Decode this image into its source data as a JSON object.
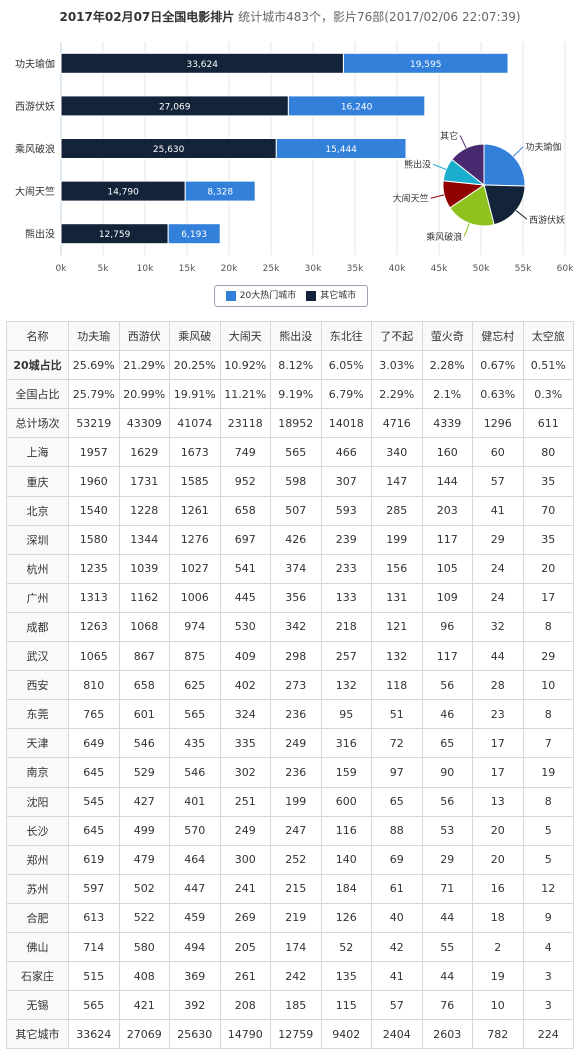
{
  "header": {
    "title": "2017年02月07日全国电影排片",
    "stats": "统计城市483个，影片76部(2017/02/06 22:07:39)"
  },
  "chart_data": [
    {
      "type": "bar",
      "orientation": "horizontal",
      "stacked": true,
      "categories": [
        "功夫瑜伽",
        "西游伏妖",
        "乘风破浪",
        "大闹天竺",
        "熊出没"
      ],
      "series": [
        {
          "name": "其它城市",
          "color": "#13243a",
          "values": [
            33624,
            27069,
            25630,
            14790,
            12759
          ]
        },
        {
          "name": "20大热门城市",
          "color": "#3380db",
          "values": [
            19595,
            16240,
            15444,
            8328,
            6193
          ]
        }
      ],
      "xlim": [
        0,
        60000
      ],
      "xticks": [
        "0k",
        "5k",
        "10k",
        "15k",
        "20k",
        "25k",
        "30k",
        "35k",
        "40k",
        "45k",
        "50k",
        "55k",
        "60k"
      ],
      "grid": true,
      "legend": "bottom-center"
    },
    {
      "type": "pie",
      "labels": [
        "功夫瑜伽",
        "西游伏妖",
        "乘风破浪",
        "大闹天竺",
        "熊出没",
        "其它"
      ],
      "values": [
        53219,
        43309,
        41074,
        23118,
        18952,
        30000
      ],
      "colors": [
        "#3380db",
        "#13243a",
        "#8dc21f",
        "#910000",
        "#1aadce",
        "#492970"
      ]
    }
  ],
  "table": {
    "headers": [
      "名称",
      "功夫瑜",
      "西游伏",
      "乘风破",
      "大闹天",
      "熊出没",
      "东北往",
      "了不起",
      "萤火奇",
      "健忘村",
      "太空旅"
    ],
    "rows": [
      [
        "20城占比",
        "25.69%",
        "21.29%",
        "20.25%",
        "10.92%",
        "8.12%",
        "6.05%",
        "3.03%",
        "2.28%",
        "0.67%",
        "0.51%"
      ],
      [
        "全国占比",
        "25.79%",
        "20.99%",
        "19.91%",
        "11.21%",
        "9.19%",
        "6.79%",
        "2.29%",
        "2.1%",
        "0.63%",
        "0.3%"
      ],
      [
        "总计场次",
        "53219",
        "43309",
        "41074",
        "23118",
        "18952",
        "14018",
        "4716",
        "4339",
        "1296",
        "611"
      ],
      [
        "上海",
        "1957",
        "1629",
        "1673",
        "749",
        "565",
        "466",
        "340",
        "160",
        "60",
        "80"
      ],
      [
        "重庆",
        "1960",
        "1731",
        "1585",
        "952",
        "598",
        "307",
        "147",
        "144",
        "57",
        "35"
      ],
      [
        "北京",
        "1540",
        "1228",
        "1261",
        "658",
        "507",
        "593",
        "285",
        "203",
        "41",
        "70"
      ],
      [
        "深圳",
        "1580",
        "1344",
        "1276",
        "697",
        "426",
        "239",
        "199",
        "117",
        "29",
        "35"
      ],
      [
        "杭州",
        "1235",
        "1039",
        "1027",
        "541",
        "374",
        "233",
        "156",
        "105",
        "24",
        "20"
      ],
      [
        "广州",
        "1313",
        "1162",
        "1006",
        "445",
        "356",
        "133",
        "131",
        "109",
        "24",
        "17"
      ],
      [
        "成都",
        "1263",
        "1068",
        "974",
        "530",
        "342",
        "218",
        "121",
        "96",
        "32",
        "8"
      ],
      [
        "武汉",
        "1065",
        "867",
        "875",
        "409",
        "298",
        "257",
        "132",
        "117",
        "44",
        "29"
      ],
      [
        "西安",
        "810",
        "658",
        "625",
        "402",
        "273",
        "132",
        "118",
        "56",
        "28",
        "10"
      ],
      [
        "东莞",
        "765",
        "601",
        "565",
        "324",
        "236",
        "95",
        "51",
        "46",
        "23",
        "8"
      ],
      [
        "天津",
        "649",
        "546",
        "435",
        "335",
        "249",
        "316",
        "72",
        "65",
        "17",
        "7"
      ],
      [
        "南京",
        "645",
        "529",
        "546",
        "302",
        "236",
        "159",
        "97",
        "90",
        "17",
        "19"
      ],
      [
        "沈阳",
        "545",
        "427",
        "401",
        "251",
        "199",
        "600",
        "65",
        "56",
        "13",
        "8"
      ],
      [
        "长沙",
        "645",
        "499",
        "570",
        "249",
        "247",
        "116",
        "88",
        "53",
        "20",
        "5"
      ],
      [
        "郑州",
        "619",
        "479",
        "464",
        "300",
        "252",
        "140",
        "69",
        "29",
        "20",
        "5"
      ],
      [
        "苏州",
        "597",
        "502",
        "447",
        "241",
        "215",
        "184",
        "61",
        "71",
        "16",
        "12"
      ],
      [
        "合肥",
        "613",
        "522",
        "459",
        "269",
        "219",
        "126",
        "40",
        "44",
        "18",
        "9"
      ],
      [
        "佛山",
        "714",
        "580",
        "494",
        "205",
        "174",
        "52",
        "42",
        "55",
        "2",
        "4"
      ],
      [
        "石家庄",
        "515",
        "408",
        "369",
        "261",
        "242",
        "135",
        "41",
        "44",
        "19",
        "3"
      ],
      [
        "无锡",
        "565",
        "421",
        "392",
        "208",
        "185",
        "115",
        "57",
        "76",
        "10",
        "3"
      ],
      [
        "其它城市",
        "33624",
        "27069",
        "25630",
        "14790",
        "12759",
        "9402",
        "2404",
        "2603",
        "782",
        "224"
      ]
    ]
  }
}
